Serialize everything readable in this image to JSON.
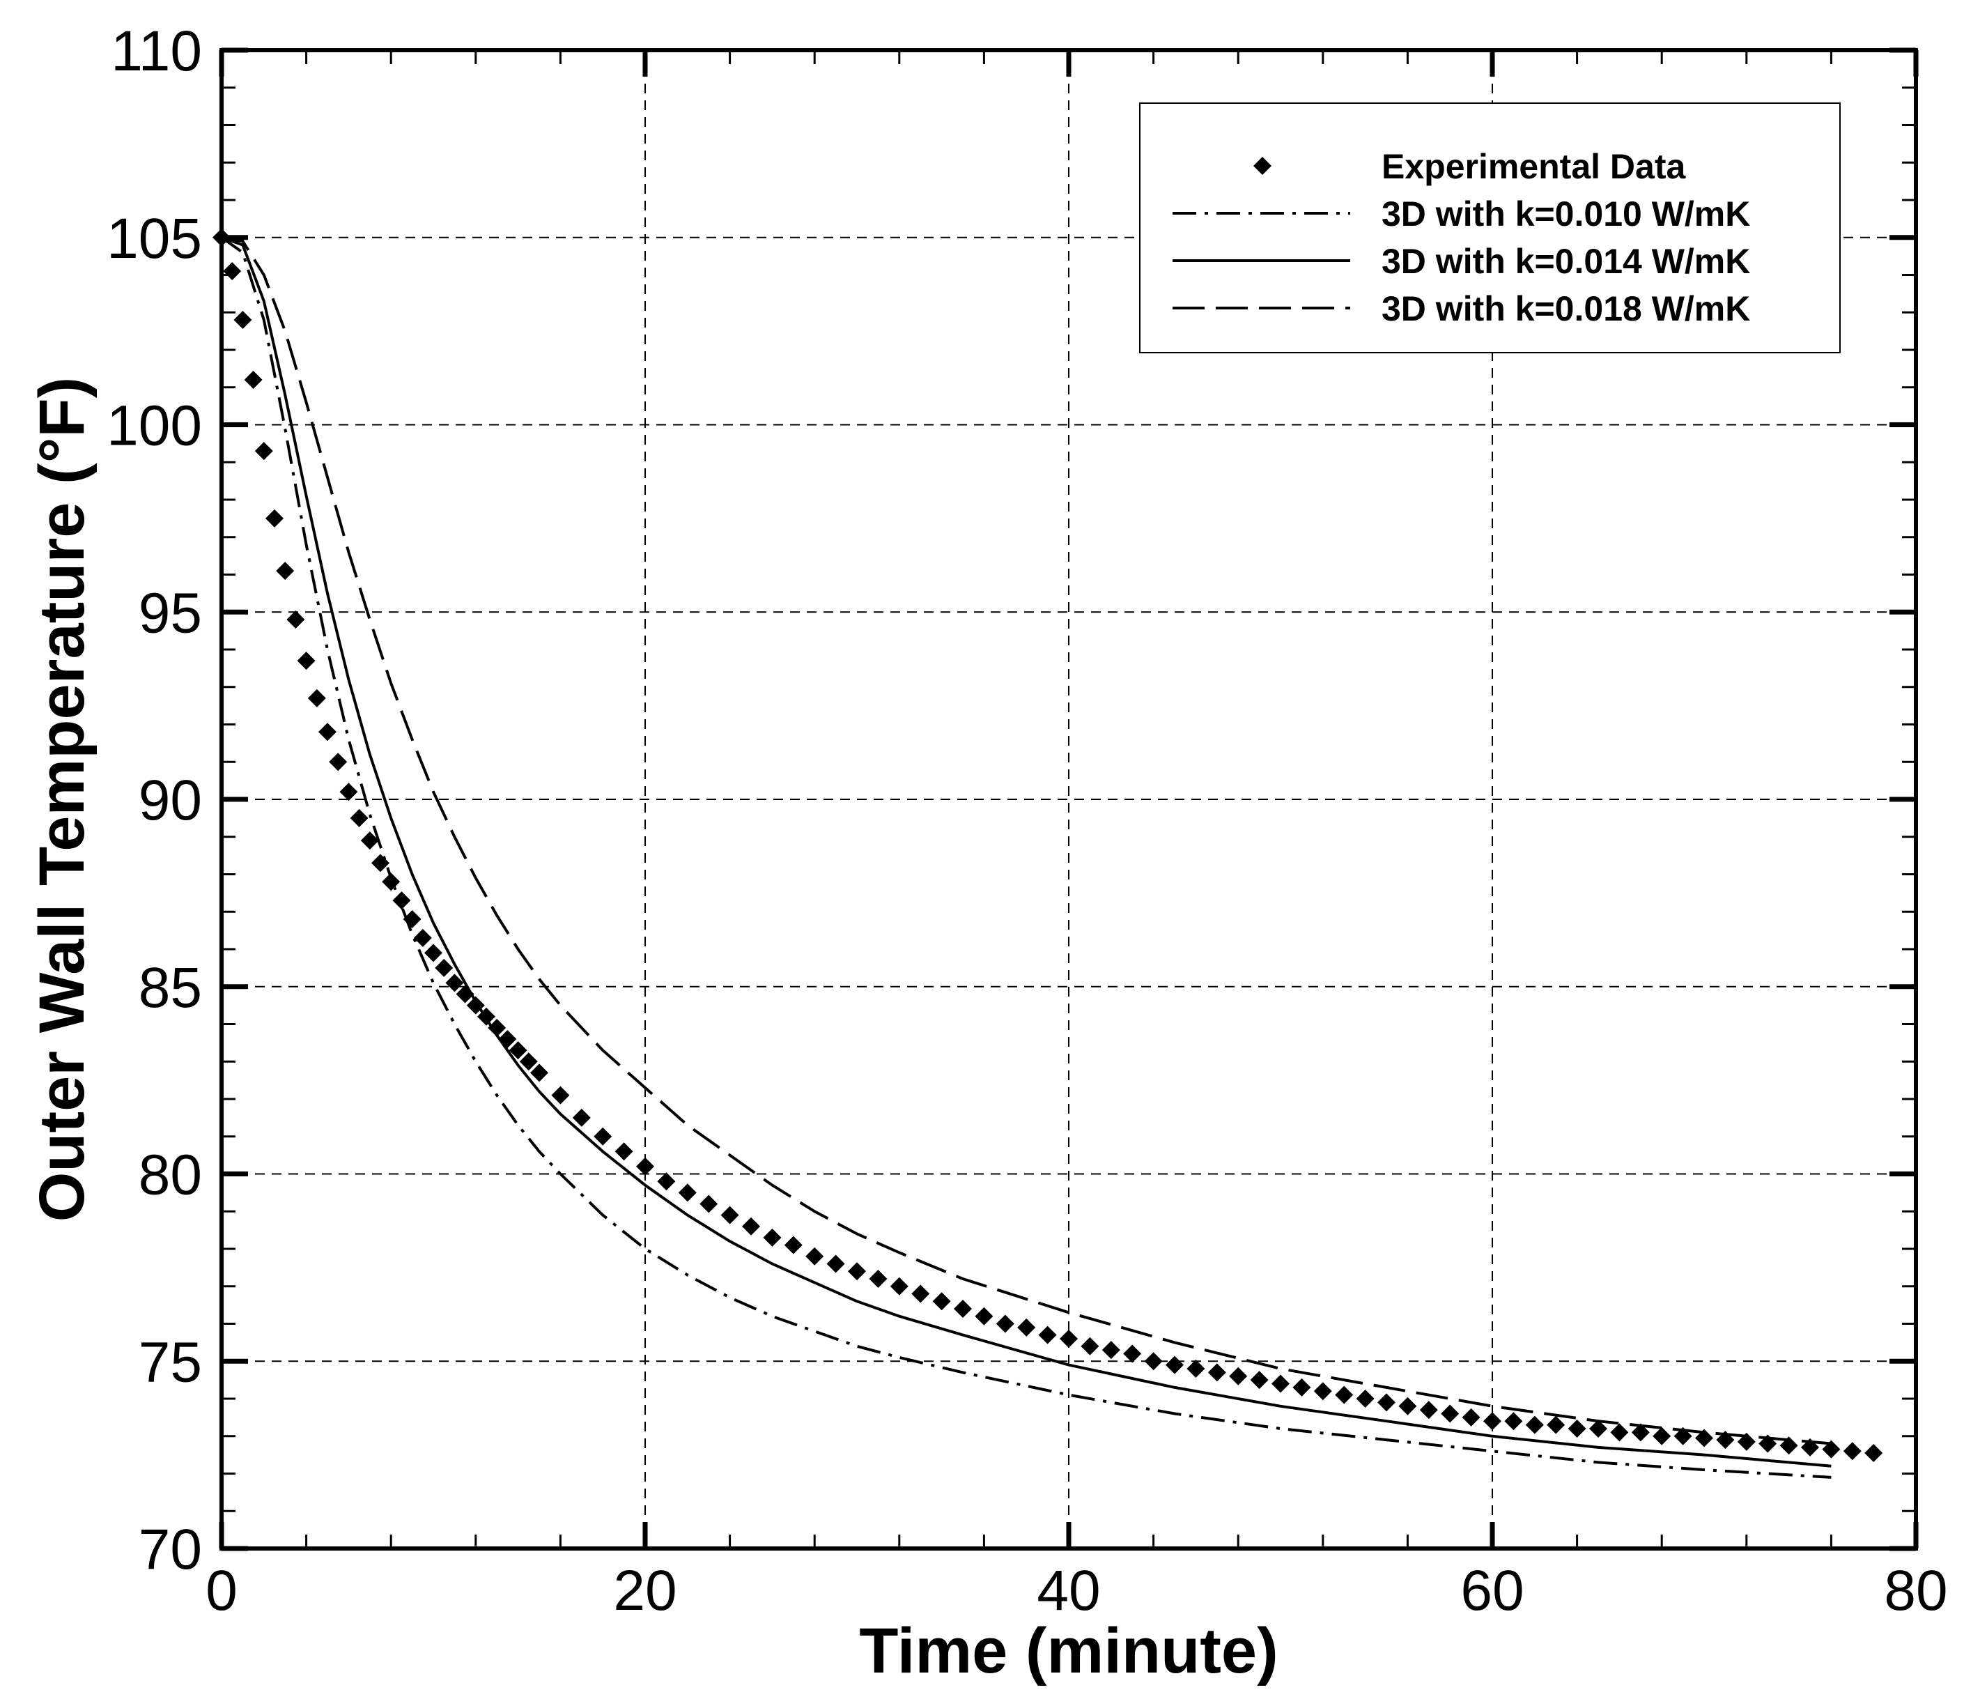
{
  "chart_data": {
    "type": "line",
    "xlabel": "Time (minute)",
    "ylabel": "Outer Wall Temperature (°F)",
    "xlim": [
      0,
      80
    ],
    "ylim": [
      70,
      110
    ],
    "xticks": [
      0,
      20,
      40,
      60,
      80
    ],
    "yticks": [
      70,
      75,
      80,
      85,
      90,
      95,
      100,
      105,
      110
    ],
    "grid": true,
    "legend_position": "top-right",
    "series": [
      {
        "name": "Experimental Data",
        "style": "markers",
        "marker": "diamond",
        "color": "#000000",
        "x": [
          0,
          0.5,
          1,
          1.5,
          2,
          2.5,
          3,
          3.5,
          4,
          4.5,
          5,
          5.5,
          6,
          6.5,
          7,
          7.5,
          8,
          8.5,
          9,
          9.5,
          10,
          10.5,
          11,
          11.5,
          12,
          12.5,
          13,
          13.5,
          14,
          14.5,
          15,
          16,
          17,
          18,
          19,
          20,
          21,
          22,
          23,
          24,
          25,
          26,
          27,
          28,
          29,
          30,
          31,
          32,
          33,
          34,
          35,
          36,
          37,
          38,
          39,
          40,
          41,
          42,
          43,
          44,
          45,
          46,
          47,
          48,
          49,
          50,
          51,
          52,
          53,
          54,
          55,
          56,
          57,
          58,
          59,
          60,
          61,
          62,
          63,
          64,
          65,
          66,
          67,
          68,
          69,
          70,
          71,
          72,
          73,
          74,
          75,
          76,
          77,
          78
        ],
        "y": [
          105.0,
          104.1,
          102.8,
          101.2,
          99.3,
          97.5,
          96.1,
          94.8,
          93.7,
          92.7,
          91.8,
          91.0,
          90.2,
          89.5,
          88.9,
          88.3,
          87.8,
          87.3,
          86.8,
          86.3,
          85.9,
          85.5,
          85.1,
          84.8,
          84.5,
          84.2,
          83.9,
          83.6,
          83.3,
          83.0,
          82.7,
          82.1,
          81.5,
          81.0,
          80.6,
          80.2,
          79.8,
          79.5,
          79.2,
          78.9,
          78.6,
          78.3,
          78.1,
          77.8,
          77.6,
          77.4,
          77.2,
          77.0,
          76.8,
          76.6,
          76.4,
          76.2,
          76.0,
          75.9,
          75.7,
          75.6,
          75.4,
          75.3,
          75.2,
          75.0,
          74.9,
          74.8,
          74.7,
          74.6,
          74.5,
          74.4,
          74.3,
          74.2,
          74.1,
          74.0,
          73.9,
          73.8,
          73.7,
          73.6,
          73.5,
          73.4,
          73.4,
          73.3,
          73.3,
          73.2,
          73.2,
          73.1,
          73.1,
          73.0,
          73.0,
          72.95,
          72.9,
          72.85,
          72.8,
          72.75,
          72.7,
          72.65,
          72.6,
          72.55
        ]
      },
      {
        "name": "3D with k=0.010 W/mK",
        "style": "dash-dot",
        "color": "#000000",
        "x": [
          0,
          1,
          2,
          3,
          4,
          5,
          6,
          7,
          8,
          9,
          10,
          11,
          12,
          13,
          14,
          15,
          16,
          18,
          20,
          22,
          24,
          26,
          28,
          30,
          32,
          35,
          40,
          45,
          50,
          55,
          60,
          65,
          70,
          76
        ],
        "y": [
          105.0,
          104.6,
          102.8,
          99.9,
          96.8,
          94.0,
          91.6,
          89.6,
          87.9,
          86.4,
          85.1,
          84.0,
          83.0,
          82.1,
          81.3,
          80.6,
          80.0,
          78.9,
          78.0,
          77.3,
          76.7,
          76.2,
          75.8,
          75.4,
          75.1,
          74.7,
          74.1,
          73.6,
          73.2,
          72.9,
          72.6,
          72.3,
          72.1,
          71.9
        ]
      },
      {
        "name": "3D with k=0.014 W/mK",
        "style": "solid",
        "color": "#000000",
        "x": [
          0,
          1,
          2,
          3,
          4,
          5,
          6,
          7,
          8,
          9,
          10,
          11,
          12,
          13,
          14,
          15,
          16,
          18,
          20,
          22,
          24,
          26,
          28,
          30,
          32,
          35,
          40,
          45,
          50,
          55,
          60,
          65,
          70,
          76
        ],
        "y": [
          105.0,
          104.8,
          103.3,
          100.8,
          98.1,
          95.5,
          93.2,
          91.2,
          89.5,
          88.0,
          86.7,
          85.6,
          84.6,
          83.7,
          82.9,
          82.2,
          81.6,
          80.6,
          79.7,
          78.9,
          78.2,
          77.6,
          77.1,
          76.6,
          76.2,
          75.7,
          74.9,
          74.3,
          73.8,
          73.4,
          73.0,
          72.7,
          72.5,
          72.2
        ]
      },
      {
        "name": "3D with k=0.018 W/mK",
        "style": "long-dash",
        "color": "#000000",
        "x": [
          0,
          1,
          2,
          3,
          4,
          5,
          6,
          7,
          8,
          9,
          10,
          11,
          12,
          13,
          14,
          15,
          16,
          18,
          20,
          22,
          24,
          26,
          28,
          30,
          32,
          35,
          40,
          45,
          50,
          55,
          60,
          65,
          70,
          76
        ],
        "y": [
          105.0,
          104.9,
          104.0,
          102.5,
          100.6,
          98.6,
          96.6,
          94.8,
          93.1,
          91.6,
          90.2,
          89.0,
          87.9,
          86.9,
          86.0,
          85.2,
          84.5,
          83.3,
          82.3,
          81.3,
          80.5,
          79.7,
          79.0,
          78.4,
          77.9,
          77.2,
          76.3,
          75.5,
          74.8,
          74.3,
          73.8,
          73.4,
          73.1,
          72.8
        ]
      }
    ]
  }
}
